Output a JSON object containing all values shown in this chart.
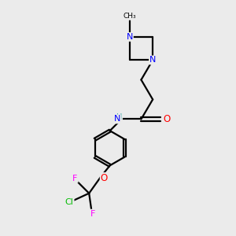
{
  "bg_color": "#ebebeb",
  "atom_colors": {
    "N": "#0000ff",
    "O": "#ff0000",
    "F": "#ff00ff",
    "Cl": "#00bb00",
    "C": "#000000",
    "H": "#44aaaa"
  }
}
